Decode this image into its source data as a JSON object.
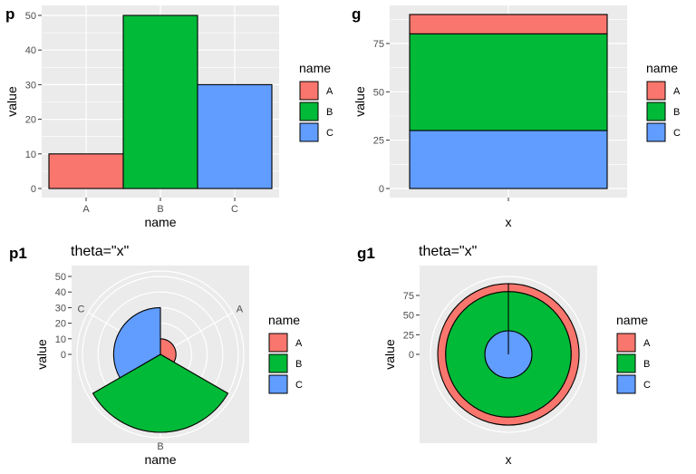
{
  "colors": {
    "A": "#F8766D",
    "B": "#00BA38",
    "C": "#619CFF",
    "panel": "#EBEBEB",
    "grid": "#FFFFFF"
  },
  "legend": {
    "title": "name",
    "keys": [
      "A",
      "B",
      "C"
    ]
  },
  "chart_data": [
    {
      "tag": "p",
      "type": "bar",
      "categories": [
        "A",
        "B",
        "C"
      ],
      "values": [
        10,
        50,
        30
      ],
      "xlabel": "name",
      "ylabel": "value",
      "yticks": [
        0,
        10,
        20,
        30,
        40,
        50
      ],
      "ylim": [
        0,
        50
      ],
      "grid": true,
      "legend_position": "right"
    },
    {
      "tag": "g",
      "type": "bar",
      "stacked": true,
      "categories": [
        ""
      ],
      "series": [
        {
          "name": "A",
          "values": [
            10
          ]
        },
        {
          "name": "B",
          "values": [
            50
          ]
        },
        {
          "name": "C",
          "values": [
            30
          ]
        }
      ],
      "xlabel": "x",
      "ylabel": "value",
      "yticks": [
        0,
        25,
        50,
        75
      ],
      "ylim": [
        0,
        90
      ],
      "grid": true,
      "legend_position": "right"
    },
    {
      "tag": "p1",
      "type": "pie",
      "polar": true,
      "subtitle": "theta=\"x\"",
      "categories": [
        "A",
        "B",
        "C"
      ],
      "values": [
        10,
        50,
        30
      ],
      "xlabel": "name",
      "ylabel": "value",
      "rticks": [
        0,
        10,
        20,
        30,
        40,
        50
      ],
      "rlim": [
        0,
        50
      ],
      "legend_position": "right"
    },
    {
      "tag": "g1",
      "type": "pie",
      "polar": true,
      "subtitle": "theta=\"x\"",
      "series": [
        {
          "name": "A",
          "values": [
            10
          ]
        },
        {
          "name": "B",
          "values": [
            50
          ]
        },
        {
          "name": "C",
          "values": [
            30
          ]
        }
      ],
      "xlabel": "x",
      "ylabel": "value",
      "rticks": [
        0,
        25,
        50,
        75
      ],
      "rlim": [
        0,
        90
      ],
      "legend_position": "right"
    }
  ]
}
